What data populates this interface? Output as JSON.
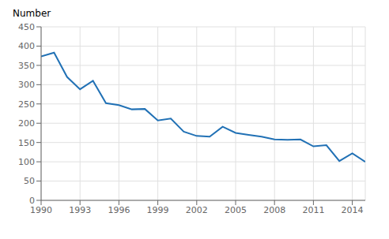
{
  "chart_data": {
    "type": "line",
    "ylabel": "Number",
    "x": [
      1990,
      1991,
      1992,
      1993,
      1994,
      1995,
      1996,
      1997,
      1998,
      1999,
      2000,
      2001,
      2002,
      2003,
      2004,
      2005,
      2006,
      2007,
      2008,
      2009,
      2010,
      2011,
      2012,
      2013,
      2014,
      2015
    ],
    "values": [
      373,
      383,
      320,
      288,
      310,
      252,
      247,
      236,
      237,
      207,
      212,
      178,
      167,
      165,
      191,
      175,
      170,
      165,
      158,
      157,
      158,
      140,
      143,
      102,
      122,
      100
    ],
    "color": "#2171b5",
    "xlim": [
      1990,
      2015
    ],
    "xticks": [
      1990,
      1993,
      1996,
      1999,
      2002,
      2005,
      2008,
      2011,
      2014
    ],
    "ylim": [
      0,
      450
    ],
    "yticks": [
      0,
      50,
      100,
      150,
      200,
      250,
      300,
      350,
      400,
      450
    ],
    "grid": true
  }
}
